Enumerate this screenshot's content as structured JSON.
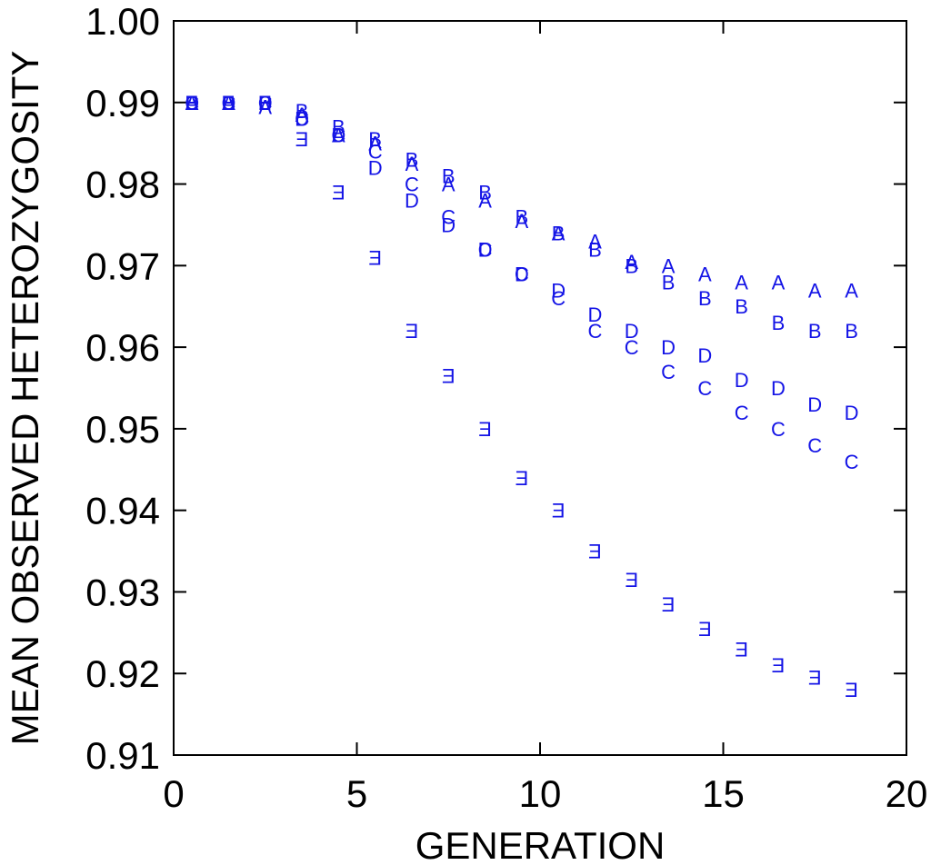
{
  "chart_data": {
    "type": "scatter",
    "title": "",
    "xlabel": "GENERATION",
    "ylabel": "MEAN OBSERVED HETEROZYGOSITY",
    "xlim": [
      0,
      20
    ],
    "ylim": [
      0.91,
      1.0
    ],
    "xticks": [
      0,
      5,
      10,
      15,
      20
    ],
    "xtick_labels": [
      "0",
      "5",
      "10",
      "15",
      "20"
    ],
    "yticks": [
      0.91,
      0.92,
      0.93,
      0.94,
      0.95,
      0.96,
      0.97,
      0.98,
      0.99,
      1.0
    ],
    "ytick_labels": [
      "0.91",
      "0.92",
      "0.93",
      "0.94",
      "0.95",
      "0.96",
      "0.97",
      "0.98",
      "0.99",
      "1.00"
    ],
    "marker_color": "#1414e6",
    "x": [
      0.5,
      1.5,
      2.5,
      3.5,
      4.5,
      5.5,
      6.5,
      7.5,
      8.5,
      9.5,
      10.5,
      11.5,
      12.5,
      13.5,
      14.5,
      15.5,
      16.5,
      17.5,
      18.5
    ],
    "series": [
      {
        "name": "A",
        "marker": "A",
        "values": [
          0.99,
          0.99,
          0.9895,
          0.9885,
          0.986,
          0.985,
          0.9825,
          0.98,
          0.978,
          0.9755,
          0.974,
          0.973,
          0.9705,
          0.97,
          0.969,
          0.968,
          0.968,
          0.967,
          0.967
        ]
      },
      {
        "name": "B",
        "marker": "B",
        "values": [
          0.99,
          0.99,
          0.99,
          0.989,
          0.987,
          0.9855,
          0.983,
          0.981,
          0.979,
          0.976,
          0.974,
          0.972,
          0.97,
          0.968,
          0.966,
          0.965,
          0.963,
          0.962,
          0.962
        ]
      },
      {
        "name": "C",
        "marker": "C",
        "values": [
          0.99,
          0.99,
          0.99,
          0.988,
          0.986,
          0.984,
          0.98,
          0.976,
          0.972,
          0.969,
          0.966,
          0.962,
          0.96,
          0.957,
          0.955,
          0.952,
          0.95,
          0.948,
          0.946
        ]
      },
      {
        "name": "D",
        "marker": "D",
        "values": [
          0.99,
          0.99,
          0.99,
          0.988,
          0.986,
          0.982,
          0.978,
          0.975,
          0.972,
          0.969,
          0.967,
          0.964,
          0.962,
          0.96,
          0.959,
          0.956,
          0.955,
          0.953,
          0.952
        ]
      },
      {
        "name": "E",
        "marker": "E",
        "values": [
          0.99,
          0.99,
          0.99,
          0.9855,
          0.979,
          0.971,
          0.962,
          0.9565,
          0.95,
          0.944,
          0.94,
          0.935,
          0.9315,
          0.9285,
          0.9255,
          0.923,
          0.921,
          0.9195,
          0.918
        ]
      }
    ]
  }
}
